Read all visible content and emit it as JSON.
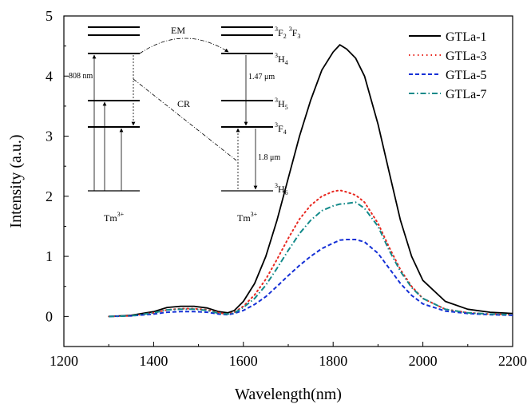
{
  "chart_data": {
    "type": "line",
    "xlabel": "Wavelength(nm)",
    "ylabel": "Intensity (a.u.)",
    "xlim": [
      1200,
      2200
    ],
    "ylim": [
      -0.5,
      5
    ],
    "xticks": [
      1200,
      1400,
      1600,
      1800,
      2000,
      2200
    ],
    "yticks": [
      0,
      1,
      2,
      3,
      4,
      5
    ],
    "legend_position": "top-right",
    "grid": false,
    "x": [
      1300,
      1350,
      1400,
      1430,
      1460,
      1490,
      1520,
      1545,
      1565,
      1580,
      1600,
      1625,
      1650,
      1675,
      1700,
      1725,
      1750,
      1775,
      1800,
      1815,
      1830,
      1850,
      1870,
      1900,
      1925,
      1950,
      1975,
      2000,
      2050,
      2100,
      2150,
      2200
    ],
    "series": [
      {
        "name": "GTLa-1",
        "color": "#000000",
        "dash": "solid",
        "values": [
          0.0,
          0.02,
          0.08,
          0.15,
          0.17,
          0.17,
          0.14,
          0.08,
          0.06,
          0.1,
          0.25,
          0.55,
          1.0,
          1.6,
          2.3,
          3.0,
          3.6,
          4.1,
          4.4,
          4.52,
          4.45,
          4.3,
          4.0,
          3.2,
          2.4,
          1.6,
          1.0,
          0.6,
          0.25,
          0.12,
          0.07,
          0.05
        ]
      },
      {
        "name": "GTLa-3",
        "color": "#e8271f",
        "dash": "dotted",
        "values": [
          0.0,
          0.01,
          0.06,
          0.11,
          0.13,
          0.13,
          0.11,
          0.06,
          0.04,
          0.07,
          0.17,
          0.36,
          0.62,
          0.95,
          1.3,
          1.62,
          1.85,
          2.0,
          2.08,
          2.1,
          2.07,
          2.02,
          1.9,
          1.55,
          1.15,
          0.78,
          0.5,
          0.3,
          0.12,
          0.06,
          0.04,
          0.03
        ]
      },
      {
        "name": "GTLa-5",
        "color": "#1530d6",
        "dash": "dashed",
        "values": [
          0.0,
          0.01,
          0.04,
          0.07,
          0.08,
          0.08,
          0.07,
          0.04,
          0.03,
          0.05,
          0.1,
          0.2,
          0.33,
          0.5,
          0.68,
          0.85,
          1.0,
          1.13,
          1.22,
          1.27,
          1.28,
          1.28,
          1.24,
          1.05,
          0.8,
          0.55,
          0.35,
          0.21,
          0.09,
          0.05,
          0.03,
          0.02
        ]
      },
      {
        "name": "GTLa-7",
        "color": "#138a8a",
        "dash": "dashdot",
        "values": [
          0.0,
          0.01,
          0.06,
          0.11,
          0.12,
          0.12,
          0.1,
          0.05,
          0.04,
          0.06,
          0.15,
          0.3,
          0.52,
          0.8,
          1.1,
          1.38,
          1.6,
          1.76,
          1.84,
          1.87,
          1.88,
          1.9,
          1.8,
          1.5,
          1.1,
          0.75,
          0.48,
          0.3,
          0.12,
          0.06,
          0.04,
          0.03
        ]
      }
    ]
  },
  "inset": {
    "ion_left": "Tm",
    "ion_right": "Tm",
    "ion_charge": "3+",
    "em_label": "EM",
    "cr_label": "CR",
    "pump_label": "808 nm",
    "emission_147": "1.47 μm",
    "emission_18": "1.8 μm",
    "levels": {
      "f2f3": {
        "a_sup": "3",
        "a": "F",
        "a_sub": "2",
        "b_sup": "3",
        "b": "F",
        "b_sub": "3"
      },
      "h4": {
        "sup": "3",
        "letter": "H",
        "sub": "4"
      },
      "h5": {
        "sup": "3",
        "letter": "H",
        "sub": "5"
      },
      "f4": {
        "sup": "3",
        "letter": "F",
        "sub": "4"
      },
      "h6": {
        "sup": "3",
        "letter": "H",
        "sub": "6"
      }
    }
  }
}
